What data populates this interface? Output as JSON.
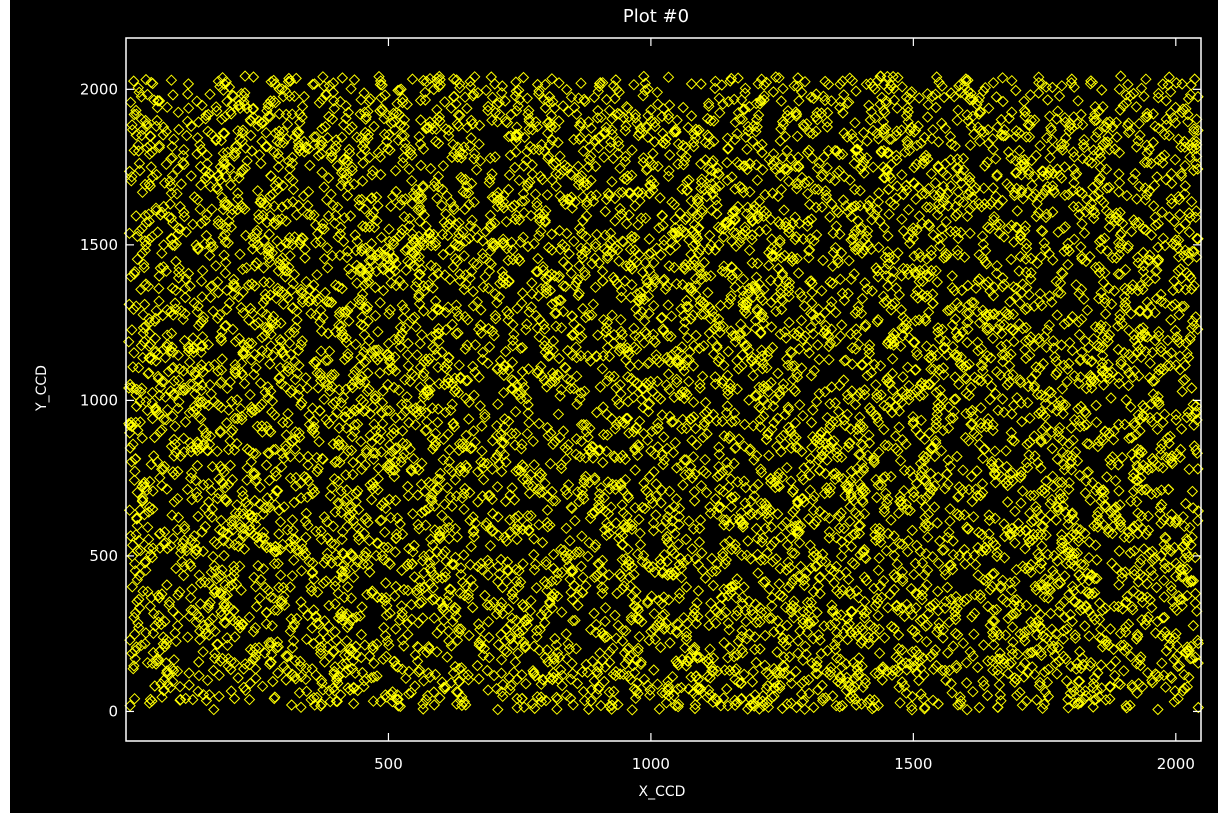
{
  "chart_data": {
    "type": "scatter",
    "title": "Plot #0",
    "xlabel": "X_CCD",
    "ylabel": "Y_CCD",
    "xlim": [
      0,
      2048
    ],
    "ylim": [
      -95,
      2165
    ],
    "xticks": [
      500,
      1000,
      1500,
      2000
    ],
    "yticks": [
      0,
      500,
      1000,
      1500,
      2000
    ],
    "marker": "diamond",
    "grid": false,
    "colors": {
      "background": "#000000",
      "frame": "#ffffff",
      "marker": "#ffff00",
      "text": "#ffffff"
    },
    "point_cloud": {
      "count": 8000,
      "x_range": [
        5,
        2043
      ],
      "y_range": [
        5,
        2043
      ],
      "distribution": "approximately uniform over the detector, with small sparse gaps"
    }
  }
}
